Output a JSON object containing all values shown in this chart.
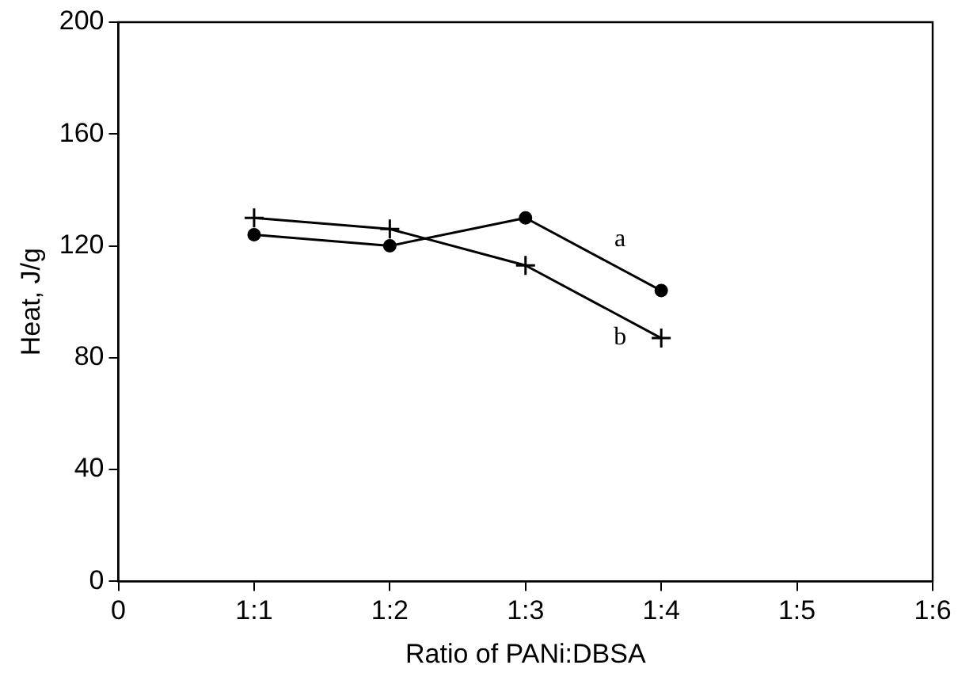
{
  "chart_data": {
    "type": "line",
    "xlabel": "Ratio of PANi:DBSA",
    "ylabel": "Heat, J/g",
    "categories": [
      "0",
      "1:1",
      "1:2",
      "1:3",
      "1:4",
      "1:5",
      "1:6"
    ],
    "ylim": [
      0,
      200
    ],
    "yticks": [
      0,
      40,
      80,
      120,
      160,
      200
    ],
    "grid": false,
    "legend": false,
    "series": [
      {
        "name": "a",
        "color": "#000000",
        "marker": "circle",
        "values": [
          null,
          124,
          120,
          130,
          104,
          null,
          null
        ]
      },
      {
        "name": "b",
        "color": "#000000",
        "marker": "cross",
        "values": [
          null,
          130,
          126,
          113,
          87,
          null,
          null
        ]
      }
    ]
  }
}
